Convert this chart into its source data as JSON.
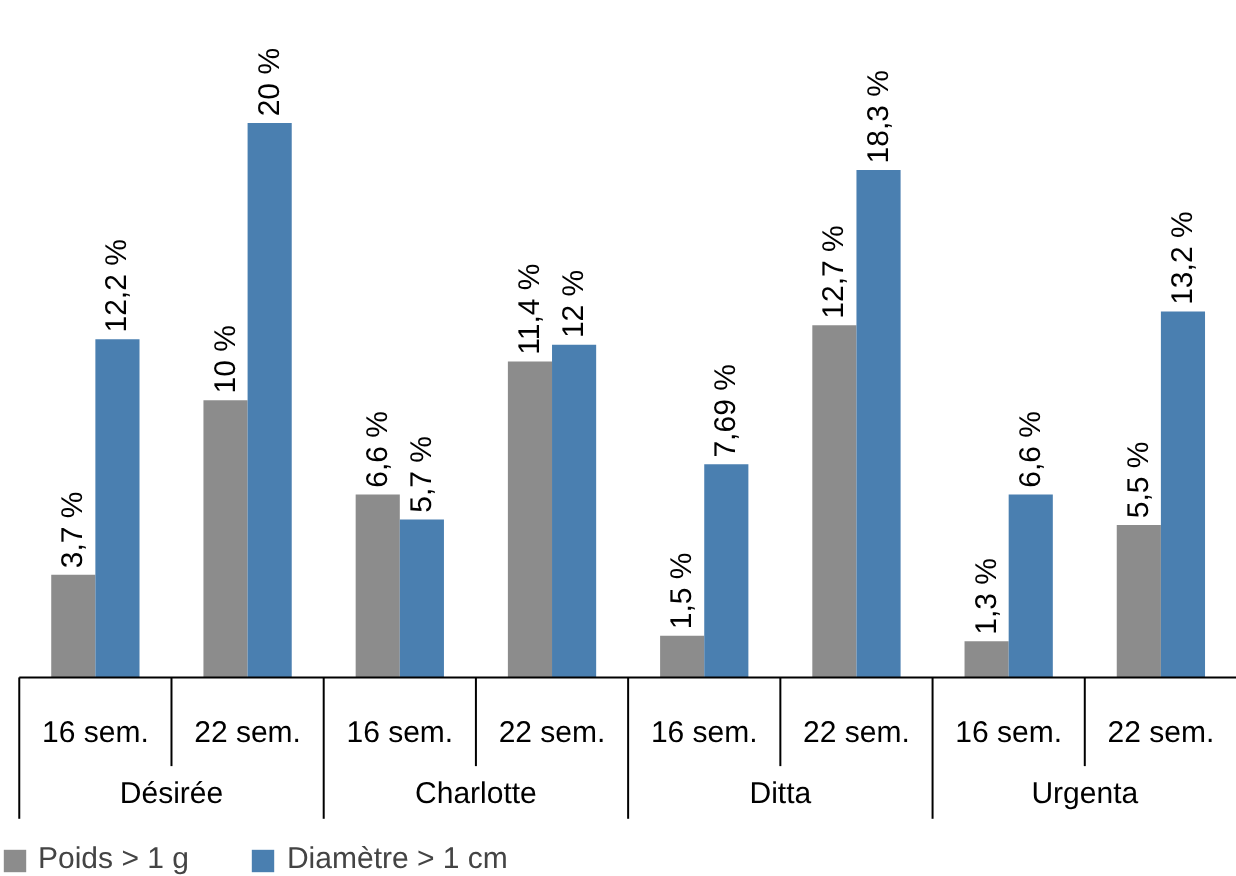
{
  "chart_data": {
    "type": "bar",
    "categories": [
      "16 sem.",
      "22 sem.",
      "16 sem.",
      "22 sem.",
      "16 sem.",
      "22 sem.",
      "16 sem.",
      "22 sem."
    ],
    "annotations": [
      "Désirée",
      "Charlotte",
      "Ditta",
      "Urgenta"
    ],
    "series": [
      {
        "name": "Poids > 1 g",
        "color": "#8c8c8c",
        "values": [
          3.7,
          10,
          6.6,
          11.4,
          1.5,
          12.7,
          1.3,
          5.5
        ],
        "value_labels": [
          "3,7 %",
          "10 %",
          "6,6 %",
          "11,4 %",
          "1,5 %",
          "12,7 %",
          "1,3 %",
          "5,5 %"
        ]
      },
      {
        "name": "Diamètre > 1 cm",
        "color": "#4a7fb0",
        "values": [
          12.2,
          20,
          5.7,
          12,
          7.69,
          18.3,
          6.6,
          13.2
        ],
        "value_labels": [
          "12,2 %",
          "20 %",
          "5,7 %",
          "12 %",
          "7,69 %",
          "18,3 %",
          "6,6 %",
          "13,2 %"
        ]
      }
    ],
    "legend": "bottom left"
  }
}
